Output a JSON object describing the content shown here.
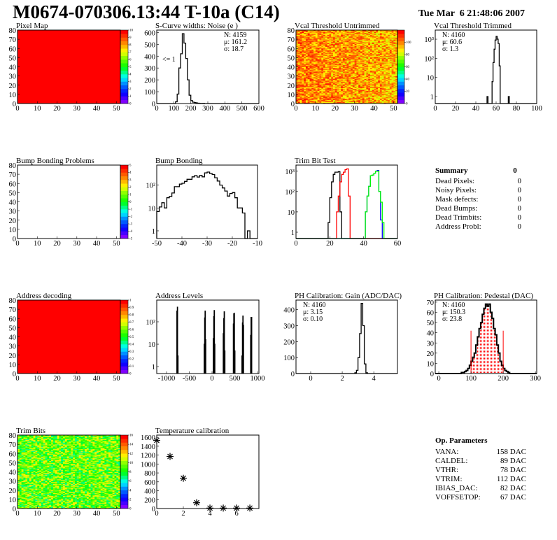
{
  "header": {
    "title": "M0674-070306.13:44 T-10a (C14)",
    "datetime": "Tue Mar  6 21:48:06 2007"
  },
  "colors": {
    "frame": "#000000",
    "highlight": "#ff0000",
    "trim_series": [
      "#000000",
      "#ff0000",
      "#0000ff",
      "#00ff00"
    ]
  },
  "chart_data": [
    {
      "type": "heatmap",
      "title": "Pixel Map",
      "xlim": [
        0,
        52
      ],
      "ylim": [
        0,
        80
      ],
      "xticks": [
        0,
        10,
        20,
        30,
        40,
        50
      ],
      "yticks": [
        0,
        10,
        20,
        30,
        40,
        50,
        60,
        70,
        80
      ],
      "zlim": [
        0,
        10
      ],
      "zticks": [
        0,
        1,
        2,
        3,
        4,
        5,
        6,
        7,
        8,
        9,
        10
      ],
      "fill": "uniform",
      "value": 10
    },
    {
      "type": "bar",
      "title": "S-Curve widths: Noise (e )",
      "xlim": [
        0,
        600
      ],
      "ylim": [
        0,
        620
      ],
      "xticks": [
        0,
        100,
        200,
        300,
        400,
        500,
        600
      ],
      "yticks": [
        0,
        100,
        200,
        300,
        400,
        500,
        600
      ],
      "bins": {
        "start": 110,
        "width": 10,
        "counts": [
          15,
          80,
          300,
          420,
          590,
          510,
          380,
          200,
          70,
          25,
          12,
          8,
          5,
          3,
          2,
          1,
          2,
          0
        ]
      },
      "stats": [
        "N: 4159",
        "μ: 161.2",
        "σ: 18.7"
      ],
      "annotation": "<= 1"
    },
    {
      "type": "heatmap",
      "title": "Vcal Threshold Untrimmed",
      "xlim": [
        0,
        52
      ],
      "ylim": [
        0,
        80
      ],
      "xticks": [
        0,
        10,
        20,
        30,
        40,
        50
      ],
      "yticks": [
        0,
        10,
        20,
        30,
        40,
        50,
        60,
        70,
        80
      ],
      "zlim": [
        0,
        120
      ],
      "zticks": [
        0,
        20,
        40,
        60,
        80,
        100
      ],
      "fill": "random",
      "value_range": [
        82,
        112
      ]
    },
    {
      "type": "bar",
      "title": "Vcal Threshold Trimmed",
      "xlim": [
        0,
        100
      ],
      "ylim": [
        0.43,
        3000
      ],
      "log_y": true,
      "xticks": [
        0,
        20,
        40,
        60,
        80,
        100
      ],
      "yticks": [
        1,
        10,
        100,
        1000
      ],
      "ytick_labels": [
        "1",
        "10",
        "10²",
        "10³"
      ],
      "bins": {
        "start": 50,
        "width": 1,
        "counts": [
          0,
          1,
          0,
          0,
          0,
          0,
          6,
          60,
          300,
          900,
          1400,
          1000,
          600,
          40,
          0,
          0,
          0,
          0,
          0,
          0,
          0,
          0,
          1,
          0
        ]
      },
      "stats": [
        "N: 4160",
        "μ: 60.6",
        "σ:  1.3"
      ]
    },
    {
      "type": "heatmap",
      "title": "Bump Bonding Problems",
      "xlim": [
        0,
        52
      ],
      "ylim": [
        0,
        80
      ],
      "xticks": [
        0,
        10,
        20,
        30,
        40,
        50
      ],
      "yticks": [
        0,
        10,
        20,
        30,
        40,
        50,
        60,
        70,
        80
      ],
      "zlim": [
        -5,
        5
      ],
      "zticks": [
        -5,
        -4,
        -3,
        -2,
        -1,
        0,
        1,
        2,
        3,
        4,
        5
      ],
      "fill": "empty"
    },
    {
      "type": "bar",
      "title": "Bump Bonding",
      "xlim": [
        -50,
        -10
      ],
      "ylim": [
        0.46,
        750
      ],
      "log_y": true,
      "xticks": [
        -50,
        -40,
        -30,
        -20,
        -10
      ],
      "yticks": [
        1,
        10,
        100
      ],
      "ytick_labels": [
        "1",
        "10",
        "10²"
      ],
      "bins": {
        "start": -50,
        "width": 1,
        "counts": [
          7,
          11,
          17,
          10,
          28,
          32,
          45,
          85,
          85,
          110,
          120,
          145,
          180,
          180,
          230,
          260,
          225,
          265,
          230,
          340,
          370,
          320,
          290,
          210,
          150,
          100,
          75,
          55,
          33,
          43,
          47,
          28,
          10,
          10,
          6,
          0,
          1,
          0
        ]
      }
    },
    {
      "type": "bar",
      "title": "Trim Bit Test",
      "xlim": [
        0,
        60
      ],
      "ylim": [
        0.49,
        2000
      ],
      "log_y": true,
      "xticks": [
        0,
        20,
        40,
        60
      ],
      "yticks": [
        1,
        10,
        100,
        1000
      ],
      "ytick_labels": [
        "1",
        "10",
        "10²",
        "10³"
      ],
      "series": [
        {
          "color": "#000000",
          "bins": {
            "start": 18,
            "width": 1,
            "counts": [
              0,
              3,
              50,
              300,
              700,
              900,
              900,
              950,
              10,
              0
            ]
          }
        },
        {
          "color": "#ff0000",
          "bins": {
            "start": 23,
            "width": 1,
            "counts": [
              0,
              10,
              60,
              300,
              700,
              900,
              1200,
              1300,
              60,
              0
            ]
          }
        },
        {
          "color": "#0000ff",
          "bins": {
            "start": 41,
            "width": 1,
            "counts": [
              10,
              60,
              180,
              600,
              650,
              800,
              1000,
              1100,
              100,
              4,
              0
            ]
          }
        },
        {
          "color": "#00ff00",
          "bins": {
            "start": 41,
            "width": 1,
            "counts": [
              10,
              60,
              180,
              600,
              650,
              800,
              1000,
              1000,
              100,
              30,
              3,
              0
            ]
          }
        }
      ]
    },
    {
      "type": "heatmap",
      "title": "Address decoding",
      "xlim": [
        0,
        52
      ],
      "ylim": [
        0,
        80
      ],
      "xticks": [
        0,
        10,
        20,
        30,
        40,
        50
      ],
      "yticks": [
        0,
        10,
        20,
        30,
        40,
        50,
        60,
        70,
        80
      ],
      "zlim": [
        0,
        1
      ],
      "zticks": [
        0,
        0.1,
        0.2,
        0.3,
        0.4,
        0.5,
        0.6,
        0.7,
        0.8,
        0.9,
        1
      ],
      "fill": "uniform",
      "value": 1
    },
    {
      "type": "bar",
      "title": "Address Levels",
      "xlim": [
        -1215,
        1030
      ],
      "ylim": [
        0.49,
        930
      ],
      "log_y": true,
      "xticks": [
        -1000,
        -500,
        0,
        500,
        1000
      ],
      "yticks": [
        1,
        10,
        100
      ],
      "ytick_labels": [
        "1",
        "10",
        "10²"
      ],
      "bin_width": 10,
      "peaks": [
        [
          -770,
          300
        ],
        [
          -760,
          450
        ],
        [
          -750,
          3
        ],
        [
          -170,
          10
        ],
        [
          -160,
          150
        ],
        [
          -150,
          300
        ],
        [
          -140,
          16
        ],
        [
          30,
          18
        ],
        [
          40,
          170
        ],
        [
          50,
          320
        ],
        [
          60,
          10
        ],
        [
          250,
          30
        ],
        [
          260,
          140
        ],
        [
          270,
          280
        ],
        [
          280,
          5
        ],
        [
          470,
          80
        ],
        [
          480,
          230
        ],
        [
          490,
          240
        ],
        [
          500,
          5
        ],
        [
          660,
          3
        ],
        [
          670,
          90
        ],
        [
          680,
          180
        ],
        [
          690,
          70
        ],
        [
          850,
          25
        ],
        [
          860,
          160
        ],
        [
          870,
          160
        ]
      ]
    },
    {
      "type": "bar",
      "title": "PH Calibration: Gain (ADC/DAC)",
      "xlim": [
        -0.93,
        5.5
      ],
      "ylim": [
        0,
        460
      ],
      "xticks": [
        0,
        2,
        4
      ],
      "yticks": [
        0,
        100,
        200,
        300,
        400
      ],
      "bins": {
        "start": 2.8,
        "width": 0.1,
        "counts": [
          5,
          20,
          100,
          250,
          440,
          300,
          60,
          5
        ]
      },
      "stats": [
        "N: 4160",
        "μ: 3.15",
        "σ: 0.10"
      ]
    },
    {
      "type": "bar",
      "title": "PH Calibration: Pedestal (DAC)",
      "xlim": [
        -11,
        304
      ],
      "ylim": [
        0,
        72
      ],
      "xticks": [
        0,
        100,
        200,
        300
      ],
      "yticks": [
        0,
        10,
        20,
        30,
        40,
        50,
        60,
        70
      ],
      "bins": {
        "start": 70,
        "width": 5,
        "counts": [
          1,
          1,
          2,
          3,
          5,
          8,
          12,
          16,
          20,
          28,
          36,
          44,
          50,
          58,
          64,
          68,
          66,
          68,
          60,
          54,
          44,
          38,
          28,
          20,
          12,
          8,
          5,
          3,
          2,
          1
        ]
      },
      "highlight_range": [
        100,
        200
      ],
      "highlight_line_height": 42,
      "stats": [
        "N: 4160",
        "μ: 150.3",
        "σ: 23.8"
      ],
      "stats_colors": [
        "#000000",
        "#ff0000",
        "#ff0000"
      ]
    },
    {
      "type": "heatmap",
      "title": "Trim Bits",
      "xlim": [
        0,
        52
      ],
      "ylim": [
        0,
        80
      ],
      "xticks": [
        0,
        10,
        20,
        30,
        40,
        50
      ],
      "yticks": [
        0,
        10,
        20,
        30,
        40,
        50,
        60,
        70,
        80
      ],
      "zlim": [
        0,
        16
      ],
      "zticks": [
        0,
        2,
        4,
        6,
        8,
        10,
        12,
        14,
        16
      ],
      "fill": "random",
      "value_range": [
        6.5,
        12
      ]
    },
    {
      "type": "scatter",
      "title": "Temperature calibration",
      "xlim": [
        0,
        7.68
      ],
      "ylim": [
        0,
        1650
      ],
      "xticks": [
        0,
        2,
        4,
        6
      ],
      "yticks": [
        0,
        200,
        400,
        600,
        800,
        1000,
        1200,
        1400,
        1600
      ],
      "x": [
        0,
        1,
        2,
        3,
        4,
        5,
        6,
        7
      ],
      "y": [
        1530,
        1170,
        680,
        130,
        10,
        10,
        10,
        10
      ],
      "marker": "asterisk"
    }
  ],
  "summary": {
    "title": "Summary",
    "total": "0",
    "rows": [
      {
        "label": "Dead Pixels:",
        "value": "0"
      },
      {
        "label": "Noisy Pixels:",
        "value": "0"
      },
      {
        "label": "Mask defects:",
        "value": "0"
      },
      {
        "label": "Dead Bumps:",
        "value": "0"
      },
      {
        "label": "Dead Trimbits:",
        "value": "0"
      },
      {
        "label": "Address Probl:",
        "value": "0"
      }
    ]
  },
  "op_parameters": {
    "title": "Op. Parameters",
    "rows": [
      {
        "label": "VANA:",
        "value": "158 DAC"
      },
      {
        "label": "CALDEL:",
        "value": "89 DAC"
      },
      {
        "label": "VTHR:",
        "value": "78 DAC"
      },
      {
        "label": "VTRIM:",
        "value": "112 DAC"
      },
      {
        "label": "IBIAS_DAC:",
        "value": "82 DAC"
      },
      {
        "label": "VOFFSETOP:",
        "value": "67 DAC"
      }
    ]
  }
}
